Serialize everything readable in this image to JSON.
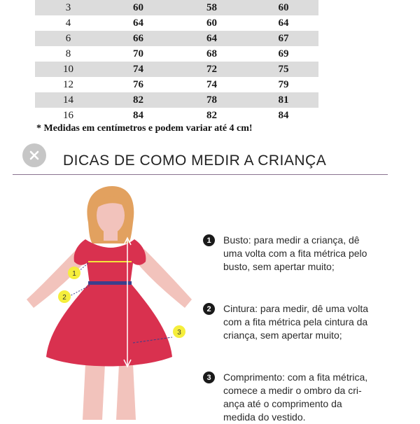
{
  "size_table": {
    "rows": [
      [
        "3",
        "60",
        "58",
        "60"
      ],
      [
        "4",
        "64",
        "60",
        "64"
      ],
      [
        "6",
        "66",
        "64",
        "67"
      ],
      [
        "8",
        "70",
        "68",
        "69"
      ],
      [
        "10",
        "74",
        "72",
        "75"
      ],
      [
        "12",
        "76",
        "74",
        "79"
      ],
      [
        "14",
        "82",
        "78",
        "81"
      ],
      [
        "16",
        "84",
        "82",
        "84"
      ]
    ],
    "footnote": "* Medidas em centímetros e podem variar até 4 cm!"
  },
  "guide": {
    "title": "DICAS DE COMO MEDIR A CRIANÇA",
    "markers": [
      "1",
      "2",
      "3"
    ],
    "tips": [
      {
        "number": "1",
        "lines": [
          "Busto: para medir a criança, dê",
          "uma volta com a fita métrica pelo",
          "busto, sem apertar muito;"
        ]
      },
      {
        "number": "2",
        "lines": [
          "Cintura: para medir, dê uma volta",
          "com a fita métrica pela cintura da",
          "criança, sem apertar muito;"
        ]
      },
      {
        "number": "3",
        "lines": [
          "Comprimento: com a fita métrica,",
          "comece a medir o ombro da cri-",
          "ança até o comprimento da",
          "medida do vestido."
        ]
      }
    ]
  },
  "colors": {
    "dress": "#d9314f",
    "skin": "#f2c3bc",
    "hair": "#e2a15f",
    "marker": "#f5ee3c",
    "bust_line": "#f3e43a",
    "waist_band": "#3b3f8c"
  },
  "icons": {
    "close": "close-icon"
  }
}
